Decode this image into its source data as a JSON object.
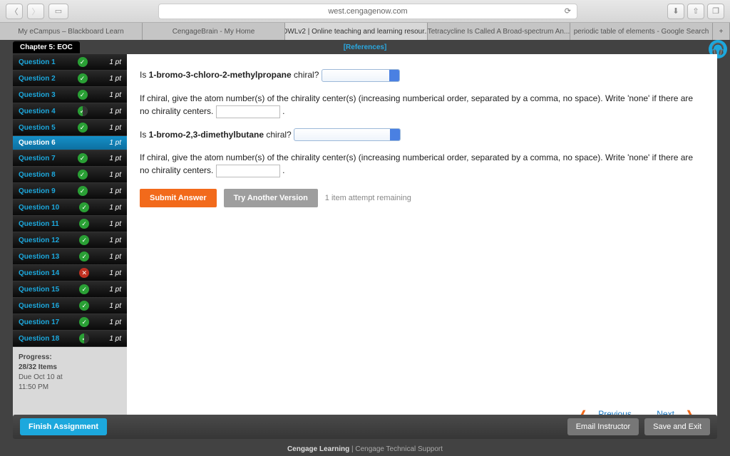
{
  "browser": {
    "url": "west.cengagenow.com",
    "tabs": [
      "My eCampus – Blackboard Learn",
      "CengageBrain - My Home",
      "OWLv2 | Online teaching and learning resour...",
      "Tetracycline Is Called A Broad-spectrum An...",
      "periodic table of elements - Google Search"
    ],
    "active_tab": 2
  },
  "chapter": "Chapter 5: EOC",
  "references": "[References]",
  "questions": [
    {
      "label": "Question 1",
      "status": "correct",
      "pts": "1 pt"
    },
    {
      "label": "Question 2",
      "status": "correct",
      "pts": "1 pt"
    },
    {
      "label": "Question 3",
      "status": "correct",
      "pts": "1 pt"
    },
    {
      "label": "Question 4",
      "status": "partial",
      "pts": "1 pt"
    },
    {
      "label": "Question 5",
      "status": "correct",
      "pts": "1 pt"
    },
    {
      "label": "Question 6",
      "status": "active",
      "pts": "1 pt"
    },
    {
      "label": "Question 7",
      "status": "correct",
      "pts": "1 pt"
    },
    {
      "label": "Question 8",
      "status": "correct",
      "pts": "1 pt"
    },
    {
      "label": "Question 9",
      "status": "correct",
      "pts": "1 pt"
    },
    {
      "label": "Question 10",
      "status": "correct",
      "pts": "1 pt"
    },
    {
      "label": "Question 11",
      "status": "correct",
      "pts": "1 pt"
    },
    {
      "label": "Question 12",
      "status": "correct",
      "pts": "1 pt"
    },
    {
      "label": "Question 13",
      "status": "correct",
      "pts": "1 pt"
    },
    {
      "label": "Question 14",
      "status": "wrong",
      "pts": "1 pt"
    },
    {
      "label": "Question 15",
      "status": "correct",
      "pts": "1 pt"
    },
    {
      "label": "Question 16",
      "status": "correct",
      "pts": "1 pt"
    },
    {
      "label": "Question 17",
      "status": "correct",
      "pts": "1 pt"
    },
    {
      "label": "Question 18",
      "status": "partial",
      "pts": "1 pt"
    }
  ],
  "progress": {
    "title": "Progress:",
    "items": "28/32 Items",
    "due": "Due Oct 10 at",
    "time": "11:50 PM"
  },
  "content": {
    "q1a": "Is ",
    "q1b": "1-bromo-3-chloro-2-methylpropane",
    "q1c": " chiral?",
    "q2": "If chiral, give the atom number(s) of the chirality center(s) (increasing numberical order, separated by a comma, no space). Write 'none' if there are no chirality centers.",
    "q3a": "Is ",
    "q3b": "1-bromo-2,3-dimethylbutane",
    "q3c": " chiral?",
    "submit": "Submit Answer",
    "tryAnother": "Try Another Version",
    "attempts": "1 item attempt remaining",
    "prev": "Previous",
    "next": "Next"
  },
  "bottom": {
    "finish": "Finish Assignment",
    "email": "Email Instructor",
    "save": "Save and Exit"
  },
  "footer": {
    "brand": "Cengage Learning",
    "sep": " | ",
    "support": "Cengage Technical Support"
  }
}
